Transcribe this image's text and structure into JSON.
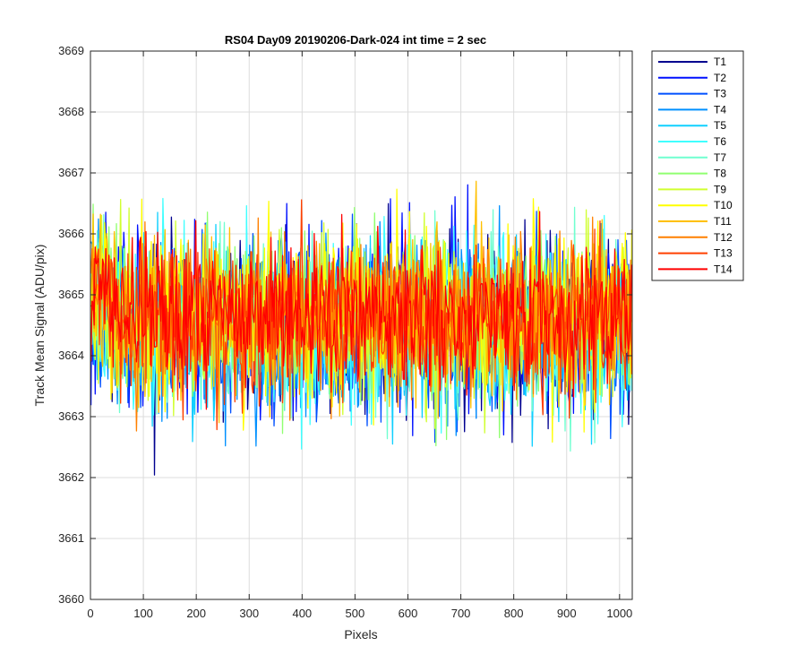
{
  "chart_data": {
    "type": "line",
    "title": "RS04 Day09 20190206-Dark-024 int time = 2 sec",
    "xlabel": "Pixels",
    "ylabel": "Track Mean Signal (ADU/pix)",
    "xlim": [
      0,
      1024
    ],
    "ylim": [
      3660,
      3669
    ],
    "xticks": [
      0,
      100,
      200,
      300,
      400,
      500,
      600,
      700,
      800,
      900,
      1000
    ],
    "yticks": [
      3660,
      3661,
      3662,
      3663,
      3664,
      3665,
      3666,
      3667,
      3668,
      3669
    ],
    "grid": true,
    "legend_position": "outside-top-right",
    "series": [
      {
        "name": "T1",
        "color": "#00008f",
        "mean": 3664.5,
        "spread": 1.3,
        "seed": 11
      },
      {
        "name": "T2",
        "color": "#0010ff",
        "mean": 3664.5,
        "spread": 1.3,
        "seed": 23
      },
      {
        "name": "T3",
        "color": "#0050ff",
        "mean": 3664.5,
        "spread": 1.3,
        "seed": 37
      },
      {
        "name": "T4",
        "color": "#0090ff",
        "mean": 3664.5,
        "spread": 1.3,
        "seed": 41
      },
      {
        "name": "T5",
        "color": "#10d0ff",
        "mean": 3664.5,
        "spread": 1.3,
        "seed": 53
      },
      {
        "name": "T6",
        "color": "#40ffff",
        "mean": 3664.5,
        "spread": 1.25,
        "seed": 67
      },
      {
        "name": "T7",
        "color": "#70ffd0",
        "mean": 3664.5,
        "spread": 1.25,
        "seed": 71
      },
      {
        "name": "T8",
        "color": "#90ff70",
        "mean": 3664.6,
        "spread": 1.25,
        "seed": 83
      },
      {
        "name": "T9",
        "color": "#d0ff30",
        "mean": 3664.6,
        "spread": 1.3,
        "seed": 97
      },
      {
        "name": "T10",
        "color": "#ffff00",
        "mean": 3664.7,
        "spread": 1.3,
        "seed": 101
      },
      {
        "name": "T11",
        "color": "#ffc000",
        "mean": 3664.6,
        "spread": 1.25,
        "seed": 113
      },
      {
        "name": "T12",
        "color": "#ff8000",
        "mean": 3664.6,
        "spread": 1.2,
        "seed": 127
      },
      {
        "name": "T13",
        "color": "#ff4000",
        "mean": 3664.6,
        "spread": 1.15,
        "seed": 131
      },
      {
        "name": "T14",
        "color": "#ff0000",
        "mean": 3664.7,
        "spread": 1.1,
        "seed": 139
      }
    ]
  }
}
